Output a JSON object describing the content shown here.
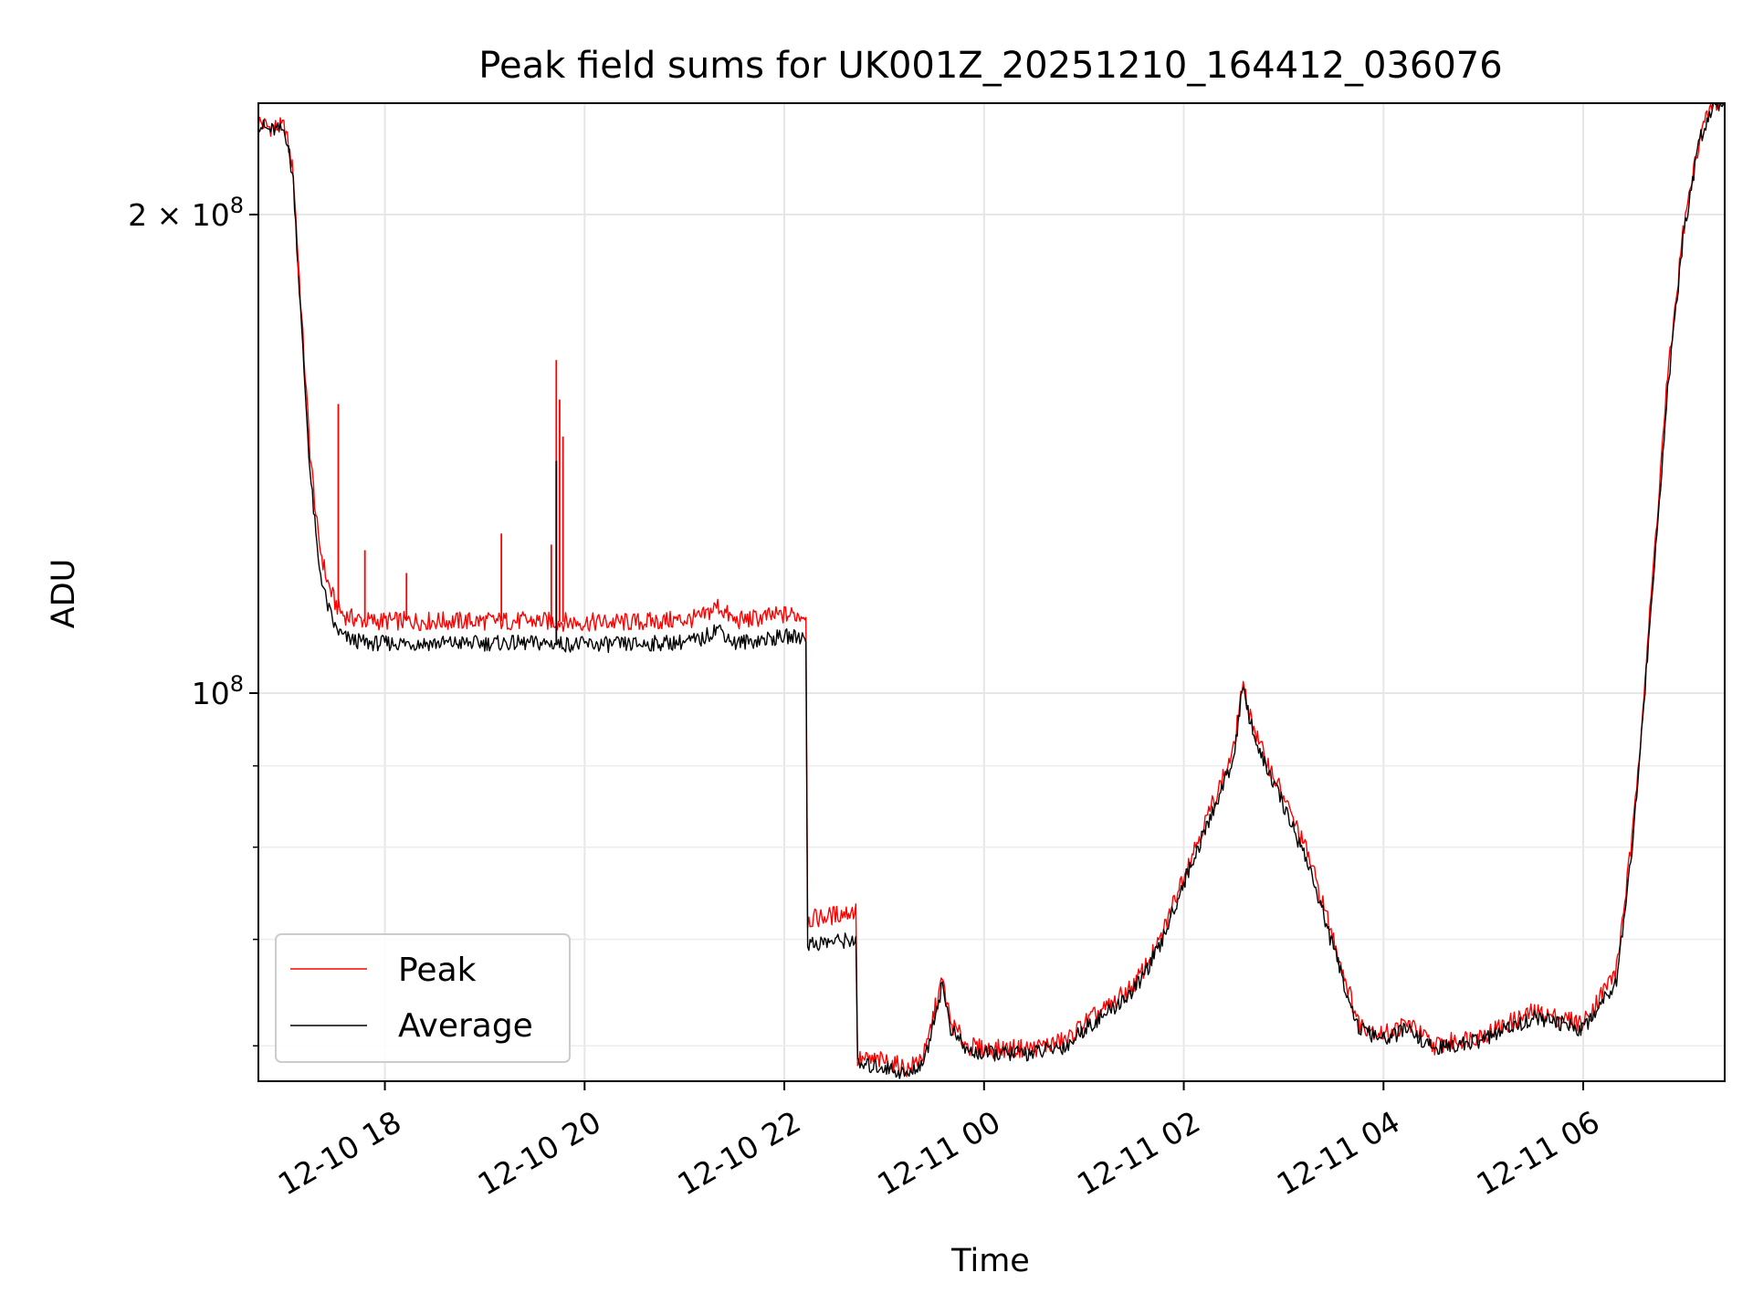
{
  "chart_data": {
    "type": "line",
    "title": "Peak field sums for UK001Z_20251210_164412_036076",
    "xlabel": "Time",
    "ylabel": "ADU",
    "x_axis": {
      "kind": "time",
      "range": [
        "2025-12-10 16:44",
        "2025-12-11 07:25"
      ],
      "ticks": [
        {
          "value": "2025-12-10 18:00",
          "label": "12-10 18"
        },
        {
          "value": "2025-12-10 20:00",
          "label": "12-10 20"
        },
        {
          "value": "2025-12-10 22:00",
          "label": "12-10 22"
        },
        {
          "value": "2025-12-11 00:00",
          "label": "12-11 00"
        },
        {
          "value": "2025-12-11 02:00",
          "label": "12-11 02"
        },
        {
          "value": "2025-12-11 04:00",
          "label": "12-11 04"
        },
        {
          "value": "2025-12-11 06:00",
          "label": "12-11 06"
        }
      ]
    },
    "y_axis": {
      "scale": "log",
      "range": [
        57000000,
        235000000
      ],
      "major_ticks": [
        {
          "value": 100000000,
          "label_base": "10",
          "label_exp": "8"
        },
        {
          "value": 200000000,
          "label_base": "2 × 10",
          "label_exp": "8"
        }
      ],
      "minor_ticks": [
        60000000,
        70000000,
        80000000,
        90000000
      ]
    },
    "grid": true,
    "legend": {
      "position": "lower-left"
    },
    "series": [
      {
        "name": "Peak",
        "color": "#ff0000",
        "points": [
          [
            "2025-12-10 16:44",
            229000000
          ],
          [
            "2025-12-10 16:50",
            227000000
          ],
          [
            "2025-12-10 17:00",
            227000000
          ],
          [
            "2025-12-10 17:05",
            212000000
          ],
          [
            "2025-12-10 17:10",
            172000000
          ],
          [
            "2025-12-10 17:15",
            142000000
          ],
          [
            "2025-12-10 17:20",
            125000000
          ],
          [
            "2025-12-10 17:25",
            118000000
          ],
          [
            "2025-12-10 17:30",
            114000000
          ],
          [
            "2025-12-10 17:35",
            112000000
          ],
          [
            "2025-12-10 17:40",
            111500000
          ],
          [
            "2025-12-10 17:50",
            111000000
          ],
          [
            "2025-12-10 18:00",
            111000000
          ],
          [
            "2025-12-10 18:30",
            111000000
          ],
          [
            "2025-12-10 19:00",
            111000000
          ],
          [
            "2025-12-10 19:30",
            111000000
          ],
          [
            "2025-12-10 20:00",
            110800000
          ],
          [
            "2025-12-10 20:30",
            110800000
          ],
          [
            "2025-12-10 21:00",
            111200000
          ],
          [
            "2025-12-10 21:10",
            111500000
          ],
          [
            "2025-12-10 21:20",
            113500000
          ],
          [
            "2025-12-10 21:30",
            111000000
          ],
          [
            "2025-12-10 21:45",
            111500000
          ],
          [
            "2025-12-10 22:00",
            112000000
          ],
          [
            "2025-12-10 22:13",
            112000000
          ],
          [
            "2025-12-10 22:14",
            72000000
          ],
          [
            "2025-12-10 22:30",
            72500000
          ],
          [
            "2025-12-10 22:43",
            73000000
          ],
          [
            "2025-12-10 22:44",
            58800000
          ],
          [
            "2025-12-10 23:00",
            58700000
          ],
          [
            "2025-12-10 23:15",
            58000000
          ],
          [
            "2025-12-10 23:25",
            59500000
          ],
          [
            "2025-12-10 23:30",
            63000000
          ],
          [
            "2025-12-10 23:35",
            66000000
          ],
          [
            "2025-12-10 23:40",
            62000000
          ],
          [
            "2025-12-10 23:50",
            60000000
          ],
          [
            "2025-12-11 00:00",
            59700000
          ],
          [
            "2025-12-11 00:30",
            59800000
          ],
          [
            "2025-12-11 00:50",
            60500000
          ],
          [
            "2025-12-11 01:00",
            62000000
          ],
          [
            "2025-12-11 01:15",
            63500000
          ],
          [
            "2025-12-11 01:30",
            65500000
          ],
          [
            "2025-12-11 01:45",
            69500000
          ],
          [
            "2025-12-11 02:00",
            77000000
          ],
          [
            "2025-12-11 02:15",
            84000000
          ],
          [
            "2025-12-11 02:30",
            92000000
          ],
          [
            "2025-12-11 02:35",
            101000000
          ],
          [
            "2025-12-11 02:45",
            93000000
          ],
          [
            "2025-12-11 03:00",
            86000000
          ],
          [
            "2025-12-11 03:15",
            79000000
          ],
          [
            "2025-12-11 03:30",
            70000000
          ],
          [
            "2025-12-11 03:45",
            62000000
          ],
          [
            "2025-12-11 04:00",
            61000000
          ],
          [
            "2025-12-11 04:15",
            62000000
          ],
          [
            "2025-12-11 04:30",
            60000000
          ],
          [
            "2025-12-11 05:00",
            61000000
          ],
          [
            "2025-12-11 05:30",
            63000000
          ],
          [
            "2025-12-11 06:00",
            62000000
          ],
          [
            "2025-12-11 06:20",
            67000000
          ],
          [
            "2025-12-11 06:30",
            82000000
          ],
          [
            "2025-12-11 06:40",
            112000000
          ],
          [
            "2025-12-11 06:50",
            155000000
          ],
          [
            "2025-12-11 07:00",
            195000000
          ],
          [
            "2025-12-11 07:10",
            224000000
          ],
          [
            "2025-12-11 07:18",
            235000000
          ],
          [
            "2025-12-11 07:25",
            235000000
          ]
        ]
      },
      {
        "name": "Average",
        "color": "#000000",
        "points": [
          [
            "2025-12-10 16:44",
            228000000
          ],
          [
            "2025-12-10 16:50",
            226000000
          ],
          [
            "2025-12-10 17:00",
            226000000
          ],
          [
            "2025-12-10 17:05",
            210000000
          ],
          [
            "2025-12-10 17:10",
            169000000
          ],
          [
            "2025-12-10 17:15",
            138000000
          ],
          [
            "2025-12-10 17:20",
            121000000
          ],
          [
            "2025-12-10 17:25",
            114000000
          ],
          [
            "2025-12-10 17:30",
            110000000
          ],
          [
            "2025-12-10 17:35",
            108500000
          ],
          [
            "2025-12-10 17:40",
            108000000
          ],
          [
            "2025-12-10 17:50",
            107500000
          ],
          [
            "2025-12-10 18:00",
            107500000
          ],
          [
            "2025-12-10 18:30",
            107500000
          ],
          [
            "2025-12-10 19:00",
            107500000
          ],
          [
            "2025-12-10 19:30",
            107500000
          ],
          [
            "2025-12-10 20:00",
            107300000
          ],
          [
            "2025-12-10 20:30",
            107300000
          ],
          [
            "2025-12-10 21:00",
            107700000
          ],
          [
            "2025-12-10 21:10",
            108000000
          ],
          [
            "2025-12-10 21:20",
            110000000
          ],
          [
            "2025-12-10 21:30",
            107500000
          ],
          [
            "2025-12-10 21:45",
            108000000
          ],
          [
            "2025-12-10 22:00",
            108500000
          ],
          [
            "2025-12-10 22:13",
            108500000
          ],
          [
            "2025-12-10 22:14",
            69500000
          ],
          [
            "2025-12-10 22:30",
            69800000
          ],
          [
            "2025-12-10 22:43",
            70000000
          ],
          [
            "2025-12-10 22:44",
            58300000
          ],
          [
            "2025-12-10 23:00",
            58200000
          ],
          [
            "2025-12-10 23:15",
            57500000
          ],
          [
            "2025-12-10 23:25",
            59000000
          ],
          [
            "2025-12-10 23:30",
            62500000
          ],
          [
            "2025-12-10 23:35",
            65500000
          ],
          [
            "2025-12-10 23:40",
            61500000
          ],
          [
            "2025-12-10 23:50",
            59500000
          ],
          [
            "2025-12-11 00:00",
            59300000
          ],
          [
            "2025-12-11 00:30",
            59400000
          ],
          [
            "2025-12-11 00:50",
            60000000
          ],
          [
            "2025-12-11 01:00",
            61500000
          ],
          [
            "2025-12-11 01:15",
            63000000
          ],
          [
            "2025-12-11 01:30",
            65000000
          ],
          [
            "2025-12-11 01:45",
            69000000
          ],
          [
            "2025-12-11 02:00",
            76000000
          ],
          [
            "2025-12-11 02:15",
            83000000
          ],
          [
            "2025-12-11 02:30",
            91000000
          ],
          [
            "2025-12-11 02:35",
            100500000
          ],
          [
            "2025-12-11 02:45",
            92000000
          ],
          [
            "2025-12-11 03:00",
            85000000
          ],
          [
            "2025-12-11 03:15",
            78000000
          ],
          [
            "2025-12-11 03:30",
            69000000
          ],
          [
            "2025-12-11 03:45",
            61500000
          ],
          [
            "2025-12-11 04:00",
            60500000
          ],
          [
            "2025-12-11 04:15",
            61500000
          ],
          [
            "2025-12-11 04:30",
            59700000
          ],
          [
            "2025-12-11 05:00",
            60500000
          ],
          [
            "2025-12-11 05:30",
            62500000
          ],
          [
            "2025-12-11 06:00",
            61500000
          ],
          [
            "2025-12-11 06:20",
            66000000
          ],
          [
            "2025-12-11 06:30",
            81000000
          ],
          [
            "2025-12-11 06:40",
            110000000
          ],
          [
            "2025-12-11 06:50",
            152000000
          ],
          [
            "2025-12-11 07:00",
            193000000
          ],
          [
            "2025-12-11 07:10",
            223000000
          ],
          [
            "2025-12-11 07:18",
            234500000
          ],
          [
            "2025-12-11 07:25",
            235000000
          ]
        ]
      }
    ],
    "spikes": [
      {
        "series": "Peak",
        "time": "2025-12-10 17:08",
        "value": 183000000
      },
      {
        "series": "Peak",
        "time": "2025-12-10 17:32",
        "value": 152000000
      },
      {
        "series": "Peak",
        "time": "2025-12-10 17:48",
        "value": 123000000
      },
      {
        "series": "Peak",
        "time": "2025-12-10 18:13",
        "value": 119000000
      },
      {
        "series": "Peak",
        "time": "2025-12-10 19:10",
        "value": 126000000
      },
      {
        "series": "Peak",
        "time": "2025-12-10 19:40",
        "value": 124000000
      },
      {
        "series": "Peak",
        "time": "2025-12-10 19:43",
        "value": 162000000
      },
      {
        "series": "Peak",
        "time": "2025-12-10 19:45",
        "value": 153000000
      },
      {
        "series": "Peak",
        "time": "2025-12-10 19:47",
        "value": 145000000
      },
      {
        "series": "Average",
        "time": "2025-12-10 19:43",
        "value": 140000000
      }
    ]
  }
}
